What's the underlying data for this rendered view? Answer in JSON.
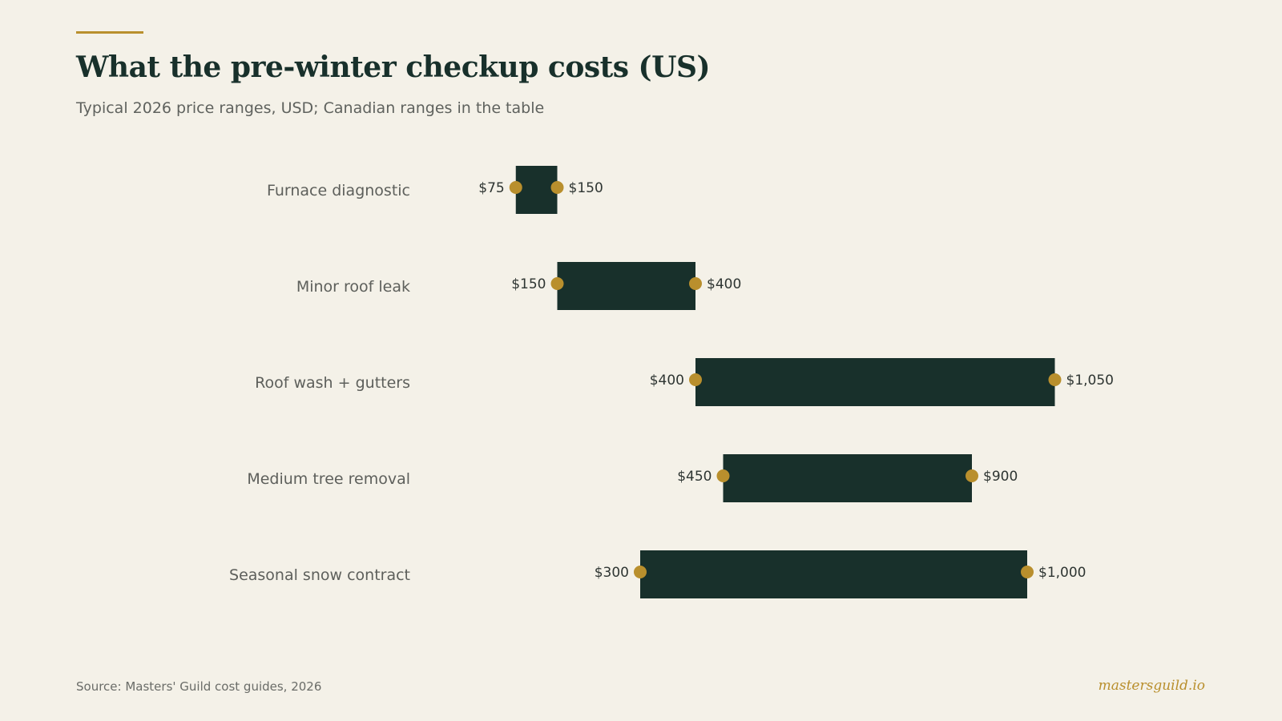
{
  "header": {
    "title": "What the pre-winter checkup costs (US)",
    "subtitle": "Typical 2026 price ranges, USD; Canadian ranges in the table"
  },
  "footer": {
    "source": "Source: Masters' Guild cost guides, 2026",
    "brand": "mastersguild.io"
  },
  "colors": {
    "background": "#f4f1e8",
    "bar": "#18302b",
    "endpoint": "#b98f2d",
    "accent": "#b98f2d"
  },
  "chart_data": {
    "type": "bar",
    "subtype": "range",
    "orientation": "horizontal",
    "title": "What the pre-winter checkup costs (US)",
    "subtitle": "Typical 2026 price ranges, USD; Canadian ranges in the table",
    "xlabel": "",
    "ylabel": "",
    "unit": "USD",
    "grid": false,
    "legend": "none",
    "categories": [
      "Furnace diagnostic",
      "Minor roof leak",
      "Roof wash + gutters",
      "Medium tree removal",
      "Seasonal snow contract"
    ],
    "series": [
      {
        "name": "",
        "low": [
          75,
          150,
          400,
          450,
          300
        ],
        "high": [
          150,
          400,
          1050,
          900,
          1000
        ]
      }
    ],
    "low_labels": [
      "$75",
      "$150",
      "$400",
      "$450",
      "$300"
    ],
    "high_labels": [
      "$150",
      "$400",
      "$1,050",
      "$900",
      "$1,000"
    ],
    "source": "Source: Masters' Guild cost guides, 2026"
  }
}
